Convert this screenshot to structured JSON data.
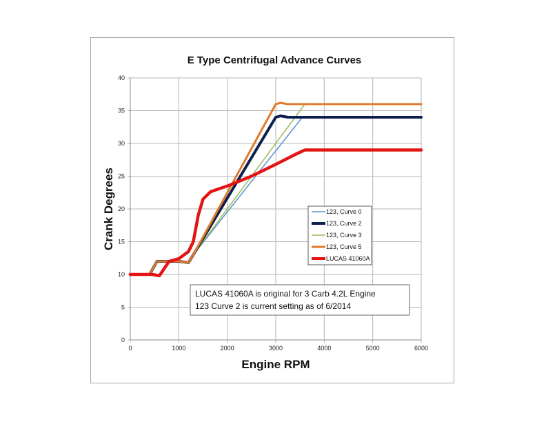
{
  "chart_data": {
    "type": "line",
    "title": "E Type  Centrifugal Advance Curves",
    "xlabel": "Engine RPM",
    "ylabel": "Crank Degrees",
    "xlim": [
      0,
      6000
    ],
    "ylim": [
      0,
      40
    ],
    "xticks": [
      0,
      1000,
      2000,
      3000,
      4000,
      5000,
      6000
    ],
    "yticks": [
      0,
      5,
      10,
      15,
      20,
      25,
      30,
      35,
      40
    ],
    "grid": true,
    "legend_position": "center-right",
    "series": [
      {
        "name": "123, Curve 0",
        "color": "#5b8fcc",
        "width": 1.5,
        "points": [
          [
            0,
            10
          ],
          [
            400,
            10
          ],
          [
            550,
            12
          ],
          [
            1000,
            12
          ],
          [
            1200,
            11.8
          ],
          [
            1300,
            13
          ],
          [
            3550,
            34
          ],
          [
            6000,
            34
          ]
        ]
      },
      {
        "name": "123, Curve 2",
        "color": "#0e1f4d",
        "width": 4,
        "points": [
          [
            0,
            10
          ],
          [
            400,
            10
          ],
          [
            550,
            12
          ],
          [
            1000,
            12
          ],
          [
            1200,
            11.8
          ],
          [
            1300,
            13
          ],
          [
            3000,
            34
          ],
          [
            3100,
            34.2
          ],
          [
            3250,
            34
          ],
          [
            6000,
            34
          ]
        ]
      },
      {
        "name": "123, Curve 3",
        "color": "#9bbb59",
        "width": 1.5,
        "points": [
          [
            0,
            10
          ],
          [
            400,
            10
          ],
          [
            550,
            12
          ],
          [
            1000,
            12
          ],
          [
            1200,
            11.8
          ],
          [
            1300,
            13
          ],
          [
            3600,
            36
          ],
          [
            6000,
            36
          ]
        ]
      },
      {
        "name": "123, Curve 5",
        "color": "#e07a2c",
        "width": 3,
        "points": [
          [
            0,
            10
          ],
          [
            400,
            10
          ],
          [
            550,
            12
          ],
          [
            1000,
            12
          ],
          [
            1200,
            11.8
          ],
          [
            1300,
            13
          ],
          [
            3000,
            36
          ],
          [
            3100,
            36.2
          ],
          [
            3250,
            36
          ],
          [
            6000,
            36
          ]
        ]
      },
      {
        "name": "LUCAS 41060A",
        "color": "#e41414",
        "width": 4.5,
        "points": [
          [
            0,
            10
          ],
          [
            450,
            10
          ],
          [
            600,
            9.8
          ],
          [
            800,
            12
          ],
          [
            1000,
            12.4
          ],
          [
            1200,
            13.5
          ],
          [
            1300,
            15
          ],
          [
            1400,
            19
          ],
          [
            1500,
            21.5
          ],
          [
            1650,
            22.6
          ],
          [
            1800,
            23
          ],
          [
            2000,
            23.5
          ],
          [
            2500,
            25
          ],
          [
            3000,
            26.8
          ],
          [
            3400,
            28.3
          ],
          [
            3600,
            29
          ],
          [
            6000,
            29
          ]
        ]
      }
    ],
    "annotation": {
      "line1": "LUCAS 41060A is original for 3 Carb 4.2L Engine",
      "line2": "123 Curve 2 is current setting as of 6/2014"
    }
  }
}
